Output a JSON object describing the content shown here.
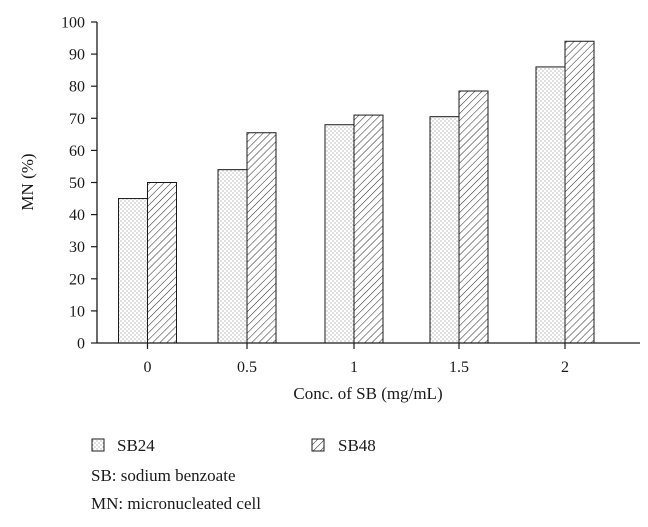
{
  "chart_data": {
    "type": "bar",
    "categories": [
      "0",
      "0.5",
      "1",
      "1.5",
      "2"
    ],
    "series": [
      {
        "name": "SB24",
        "values": [
          45,
          54,
          68,
          70.5,
          86
        ],
        "pattern": "dots"
      },
      {
        "name": "SB48",
        "values": [
          50,
          65.5,
          71,
          78.5,
          94
        ],
        "pattern": "hatch"
      }
    ],
    "xlabel": "Conc. of SB (mg/mL)",
    "ylabel": "MN (%)",
    "ylim": [
      0,
      100
    ],
    "yticks": [
      "0",
      "10",
      "20",
      "30",
      "40",
      "50",
      "60",
      "70",
      "80",
      "90",
      "100"
    ],
    "grid": false,
    "legend_position": "bottom-left",
    "notes": [
      "SB: sodium benzoate",
      "MN: micronucleated cell"
    ]
  }
}
